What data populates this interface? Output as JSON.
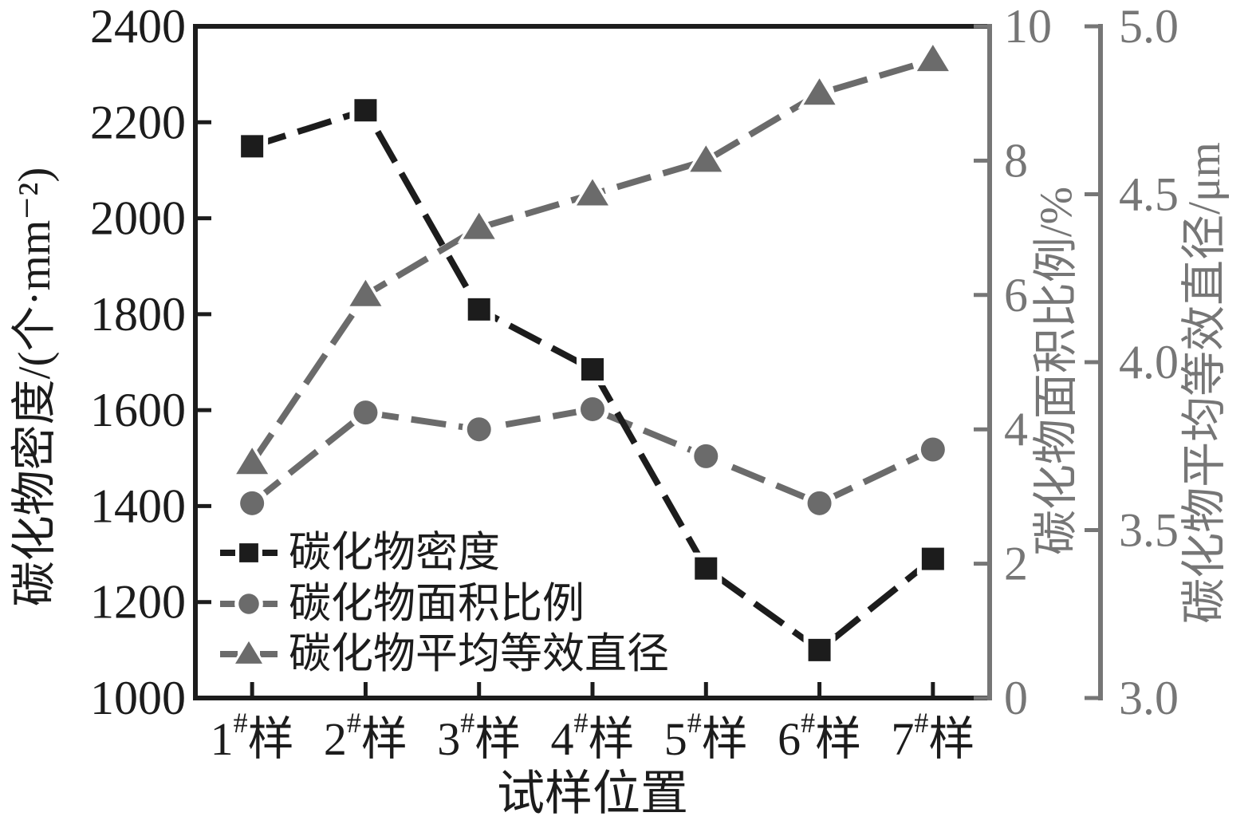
{
  "chart_data": {
    "type": "line",
    "title": "",
    "categories": [
      "1#样",
      "2#样",
      "3#样",
      "4#样",
      "5#样",
      "6#样",
      "7#样"
    ],
    "xlabel": "试样位置",
    "series": [
      {
        "name": "碳化物密度",
        "axis": "left",
        "marker": "square",
        "line_style": "dashed",
        "color": "#1c1c1c",
        "unit": "个·mm⁻²",
        "values": [
          2150,
          2225,
          1810,
          1685,
          1270,
          1100,
          1290
        ]
      },
      {
        "name": "碳化物面积比例",
        "axis": "right_area",
        "marker": "circle",
        "line_style": "dashed",
        "color": "#6b6b6b",
        "unit": "%",
        "values": [
          2.9,
          4.25,
          4.0,
          4.3,
          3.6,
          2.9,
          3.7
        ]
      },
      {
        "name": "碳化物平均等效直径",
        "axis": "right_diameter",
        "marker": "triangle",
        "line_style": "dashed",
        "color": "#6b6b6b",
        "unit": "μm",
        "values": [
          3.7,
          4.2,
          4.4,
          4.5,
          4.6,
          4.8,
          4.9
        ]
      }
    ],
    "axes": {
      "left": {
        "label": "碳化物密度/(个·mm⁻²)",
        "min": 1000,
        "max": 2400,
        "ticks": [
          "2400",
          "2200",
          "2000",
          "1800",
          "1600",
          "1400",
          "1200",
          "1000"
        ],
        "color": "#1c1c1c"
      },
      "right_area": {
        "label": "碳化物面积比例/%",
        "min": 0,
        "max": 10,
        "ticks": [
          "10",
          "8",
          "6",
          "4",
          "2",
          "0"
        ],
        "color": "#767676"
      },
      "right_diameter": {
        "label": "碳化物平均等效直径/μm",
        "min": 3.0,
        "max": 5.0,
        "ticks": [
          "5.0",
          "4.5",
          "4.0",
          "3.5",
          "3.0"
        ],
        "color": "#767676"
      }
    },
    "legend": {
      "position": "lower_left",
      "items": [
        "碳化物密度",
        "碳化物面积比例",
        "碳化物平均等效直径"
      ]
    },
    "grid": false,
    "background": "#ffffff"
  }
}
